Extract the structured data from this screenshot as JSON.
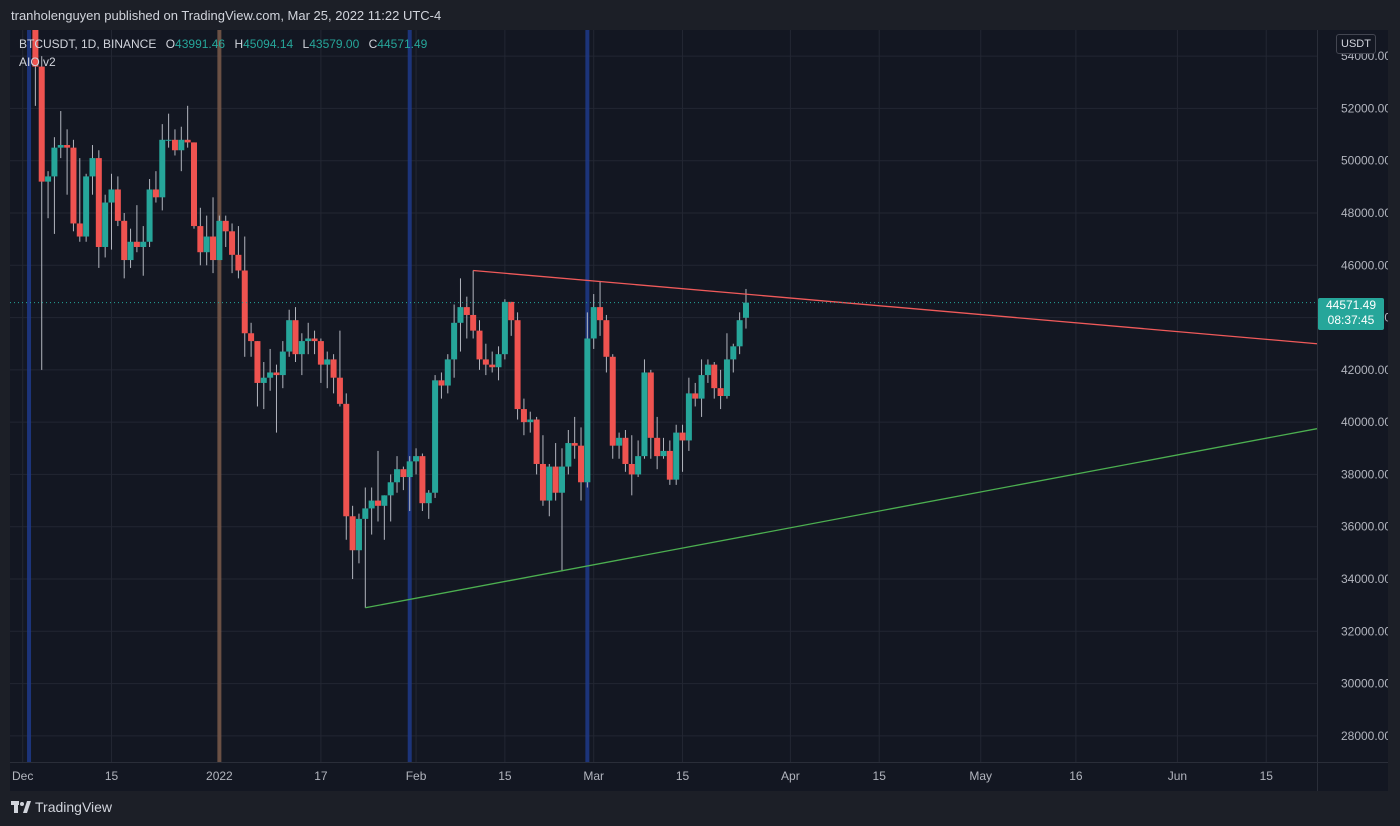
{
  "header": {
    "published_text": "tranholenguyen published on TradingView.com, Mar 25, 2022 11:22 UTC-4"
  },
  "legend": {
    "symbol": "BTCUSDT, 1D, BINANCE",
    "o_label": "O",
    "o": "43991.46",
    "h_label": "H",
    "h": "45094.14",
    "l_label": "L",
    "l": "43579.00",
    "c_label": "C",
    "c": "44571.49",
    "indicator": "AIO v2"
  },
  "currency_badge": "USDT",
  "last_price": {
    "value": "44571.49",
    "countdown": "08:37:45"
  },
  "footer": {
    "brand": "TradingView"
  },
  "colors": {
    "up": "#26a69a",
    "down": "#ef5350",
    "resistance": "#f05a5a",
    "support": "#4caf50",
    "background": "#131722",
    "blue_band": "#1e3a8a",
    "brown_band": "#7a5a4a"
  },
  "chart_data": {
    "type": "candlestick",
    "y_ticks": [
      "54000.00",
      "52000.00",
      "50000.00",
      "48000.00",
      "46000.00",
      "44000.00",
      "42000.00",
      "40000.00",
      "38000.00",
      "36000.00",
      "34000.00",
      "32000.00",
      "30000.00",
      "28000.00"
    ],
    "ylim": [
      27000,
      55000
    ],
    "x_ticks": [
      {
        "date": "2021-12-01",
        "label": "Dec"
      },
      {
        "date": "2021-12-15",
        "label": "15"
      },
      {
        "date": "2022-01-01",
        "label": "2022"
      },
      {
        "date": "2022-01-17",
        "label": "17"
      },
      {
        "date": "2022-02-01",
        "label": "Feb"
      },
      {
        "date": "2022-02-15",
        "label": "15"
      },
      {
        "date": "2022-03-01",
        "label": "Mar"
      },
      {
        "date": "2022-03-15",
        "label": "15"
      },
      {
        "date": "2022-04-01",
        "label": "Apr"
      },
      {
        "date": "2022-04-15",
        "label": "15"
      },
      {
        "date": "2022-05-01",
        "label": "May"
      },
      {
        "date": "2022-05-16",
        "label": "16"
      },
      {
        "date": "2022-06-01",
        "label": "Jun"
      },
      {
        "date": "2022-06-15",
        "label": "15"
      }
    ],
    "xlim": [
      "2021-11-29",
      "2022-06-23"
    ],
    "vertical_bands": [
      {
        "date": "2021-12-02",
        "color": "blue"
      },
      {
        "date": "2022-01-01",
        "color": "brown"
      },
      {
        "date": "2022-01-31",
        "color": "blue"
      },
      {
        "date": "2022-02-28",
        "color": "blue"
      }
    ],
    "trendlines": [
      {
        "name": "resistance",
        "from": {
          "date": "2022-02-10",
          "y": 45800
        },
        "to": {
          "date": "2022-06-23",
          "y": 43000
        }
      },
      {
        "name": "support",
        "from": {
          "date": "2022-01-24",
          "y": 32900
        },
        "to": {
          "date": "2022-06-23",
          "y": 39750
        }
      }
    ],
    "last_price_line": 44571.49,
    "candles": [
      {
        "d": "2021-12-03",
        "o": 56500,
        "h": 57600,
        "l": 52100,
        "c": 53600
      },
      {
        "d": "2021-12-04",
        "o": 53600,
        "h": 54000,
        "l": 42000,
        "c": 49200
      },
      {
        "d": "2021-12-05",
        "o": 49200,
        "h": 49600,
        "l": 47800,
        "c": 49400
      },
      {
        "d": "2021-12-06",
        "o": 49400,
        "h": 50900,
        "l": 47200,
        "c": 50500
      },
      {
        "d": "2021-12-07",
        "o": 50500,
        "h": 51900,
        "l": 50100,
        "c": 50600
      },
      {
        "d": "2021-12-08",
        "o": 50600,
        "h": 51200,
        "l": 48700,
        "c": 50500
      },
      {
        "d": "2021-12-09",
        "o": 50500,
        "h": 50800,
        "l": 47300,
        "c": 47600
      },
      {
        "d": "2021-12-10",
        "o": 47600,
        "h": 50100,
        "l": 46900,
        "c": 47100
      },
      {
        "d": "2021-12-11",
        "o": 47100,
        "h": 49500,
        "l": 46900,
        "c": 49400
      },
      {
        "d": "2021-12-12",
        "o": 49400,
        "h": 50600,
        "l": 48700,
        "c": 50100
      },
      {
        "d": "2021-12-13",
        "o": 50100,
        "h": 50400,
        "l": 45900,
        "c": 46700
      },
      {
        "d": "2021-12-14",
        "o": 46700,
        "h": 48700,
        "l": 46300,
        "c": 48400
      },
      {
        "d": "2021-12-15",
        "o": 48400,
        "h": 49500,
        "l": 46600,
        "c": 48900
      },
      {
        "d": "2021-12-16",
        "o": 48900,
        "h": 49400,
        "l": 47500,
        "c": 47700
      },
      {
        "d": "2021-12-17",
        "o": 47700,
        "h": 48000,
        "l": 45500,
        "c": 46200
      },
      {
        "d": "2021-12-18",
        "o": 46200,
        "h": 47400,
        "l": 45900,
        "c": 46900
      },
      {
        "d": "2021-12-19",
        "o": 46900,
        "h": 48300,
        "l": 46500,
        "c": 46700
      },
      {
        "d": "2021-12-20",
        "o": 46700,
        "h": 47500,
        "l": 45600,
        "c": 46900
      },
      {
        "d": "2021-12-21",
        "o": 46900,
        "h": 49300,
        "l": 46700,
        "c": 48900
      },
      {
        "d": "2021-12-22",
        "o": 48900,
        "h": 49600,
        "l": 48400,
        "c": 48600
      },
      {
        "d": "2021-12-23",
        "o": 48600,
        "h": 51400,
        "l": 48100,
        "c": 50800
      },
      {
        "d": "2021-12-24",
        "o": 50800,
        "h": 51800,
        "l": 50500,
        "c": 50800
      },
      {
        "d": "2021-12-25",
        "o": 50800,
        "h": 51200,
        "l": 50200,
        "c": 50400
      },
      {
        "d": "2021-12-26",
        "o": 50400,
        "h": 51300,
        "l": 49600,
        "c": 50800
      },
      {
        "d": "2021-12-27",
        "o": 50800,
        "h": 52100,
        "l": 50500,
        "c": 50700
      },
      {
        "d": "2021-12-28",
        "o": 50700,
        "h": 50700,
        "l": 47400,
        "c": 47500
      },
      {
        "d": "2021-12-29",
        "o": 47500,
        "h": 48200,
        "l": 46000,
        "c": 46500
      },
      {
        "d": "2021-12-30",
        "o": 46500,
        "h": 47900,
        "l": 46000,
        "c": 47100
      },
      {
        "d": "2021-12-31",
        "o": 47100,
        "h": 48600,
        "l": 45700,
        "c": 46200
      },
      {
        "d": "2022-01-01",
        "o": 46200,
        "h": 47900,
        "l": 46200,
        "c": 47700
      },
      {
        "d": "2022-01-02",
        "o": 47700,
        "h": 47900,
        "l": 46700,
        "c": 47300
      },
      {
        "d": "2022-01-03",
        "o": 47300,
        "h": 47600,
        "l": 45700,
        "c": 46400
      },
      {
        "d": "2022-01-04",
        "o": 46400,
        "h": 47500,
        "l": 45500,
        "c": 45800
      },
      {
        "d": "2022-01-05",
        "o": 45800,
        "h": 47100,
        "l": 42500,
        "c": 43400
      },
      {
        "d": "2022-01-06",
        "o": 43400,
        "h": 43800,
        "l": 42500,
        "c": 43100
      },
      {
        "d": "2022-01-07",
        "o": 43100,
        "h": 43100,
        "l": 40600,
        "c": 41500
      },
      {
        "d": "2022-01-08",
        "o": 41500,
        "h": 42300,
        "l": 40500,
        "c": 41700
      },
      {
        "d": "2022-01-09",
        "o": 41700,
        "h": 42800,
        "l": 41200,
        "c": 41900
      },
      {
        "d": "2022-01-10",
        "o": 41900,
        "h": 42200,
        "l": 39600,
        "c": 41800
      },
      {
        "d": "2022-01-11",
        "o": 41800,
        "h": 43100,
        "l": 41300,
        "c": 42700
      },
      {
        "d": "2022-01-12",
        "o": 42700,
        "h": 44300,
        "l": 42500,
        "c": 43900
      },
      {
        "d": "2022-01-13",
        "o": 43900,
        "h": 44400,
        "l": 42300,
        "c": 42600
      },
      {
        "d": "2022-01-14",
        "o": 42600,
        "h": 43400,
        "l": 41800,
        "c": 43100
      },
      {
        "d": "2022-01-15",
        "o": 43100,
        "h": 43800,
        "l": 42600,
        "c": 43200
      },
      {
        "d": "2022-01-16",
        "o": 43200,
        "h": 43500,
        "l": 42600,
        "c": 43100
      },
      {
        "d": "2022-01-17",
        "o": 43100,
        "h": 43200,
        "l": 41500,
        "c": 42200
      },
      {
        "d": "2022-01-18",
        "o": 42200,
        "h": 42700,
        "l": 41300,
        "c": 42400
      },
      {
        "d": "2022-01-19",
        "o": 42400,
        "h": 42600,
        "l": 41100,
        "c": 41700
      },
      {
        "d": "2022-01-20",
        "o": 41700,
        "h": 43500,
        "l": 40600,
        "c": 40700
      },
      {
        "d": "2022-01-21",
        "o": 40700,
        "h": 41100,
        "l": 35500,
        "c": 36400
      },
      {
        "d": "2022-01-22",
        "o": 36400,
        "h": 36800,
        "l": 34000,
        "c": 35100
      },
      {
        "d": "2022-01-23",
        "o": 35100,
        "h": 36500,
        "l": 34600,
        "c": 36300
      },
      {
        "d": "2022-01-24",
        "o": 36300,
        "h": 37500,
        "l": 32900,
        "c": 36700
      },
      {
        "d": "2022-01-25",
        "o": 36700,
        "h": 37500,
        "l": 35700,
        "c": 37000
      },
      {
        "d": "2022-01-26",
        "o": 37000,
        "h": 38900,
        "l": 36200,
        "c": 36800
      },
      {
        "d": "2022-01-27",
        "o": 36800,
        "h": 37200,
        "l": 35500,
        "c": 37200
      },
      {
        "d": "2022-01-28",
        "o": 37200,
        "h": 38000,
        "l": 36200,
        "c": 37700
      },
      {
        "d": "2022-01-29",
        "o": 37700,
        "h": 38700,
        "l": 37300,
        "c": 38200
      },
      {
        "d": "2022-01-30",
        "o": 38200,
        "h": 38300,
        "l": 37400,
        "c": 37900
      },
      {
        "d": "2022-01-31",
        "o": 37900,
        "h": 38700,
        "l": 36600,
        "c": 38500
      },
      {
        "d": "2022-02-01",
        "o": 38500,
        "h": 39000,
        "l": 38000,
        "c": 38700
      },
      {
        "d": "2022-02-02",
        "o": 38700,
        "h": 38800,
        "l": 36600,
        "c": 36900
      },
      {
        "d": "2022-02-03",
        "o": 36900,
        "h": 37400,
        "l": 36300,
        "c": 37300
      },
      {
        "d": "2022-02-04",
        "o": 37300,
        "h": 41800,
        "l": 37100,
        "c": 41600
      },
      {
        "d": "2022-02-05",
        "o": 41600,
        "h": 41900,
        "l": 40900,
        "c": 41400
      },
      {
        "d": "2022-02-06",
        "o": 41400,
        "h": 42600,
        "l": 41100,
        "c": 42400
      },
      {
        "d": "2022-02-07",
        "o": 42400,
        "h": 44500,
        "l": 41700,
        "c": 43800
      },
      {
        "d": "2022-02-08",
        "o": 43800,
        "h": 45500,
        "l": 42700,
        "c": 44400
      },
      {
        "d": "2022-02-09",
        "o": 44400,
        "h": 44800,
        "l": 43200,
        "c": 44100
      },
      {
        "d": "2022-02-10",
        "o": 44100,
        "h": 45800,
        "l": 43200,
        "c": 43500
      },
      {
        "d": "2022-02-11",
        "o": 43500,
        "h": 43900,
        "l": 42000,
        "c": 42400
      },
      {
        "d": "2022-02-12",
        "o": 42400,
        "h": 43000,
        "l": 41800,
        "c": 42200
      },
      {
        "d": "2022-02-13",
        "o": 42200,
        "h": 42700,
        "l": 41900,
        "c": 42100
      },
      {
        "d": "2022-02-14",
        "o": 42100,
        "h": 42900,
        "l": 41600,
        "c": 42600
      },
      {
        "d": "2022-02-15",
        "o": 42600,
        "h": 44700,
        "l": 42400,
        "c": 44600
      },
      {
        "d": "2022-02-16",
        "o": 44600,
        "h": 44600,
        "l": 43300,
        "c": 43900
      },
      {
        "d": "2022-02-17",
        "o": 43900,
        "h": 44200,
        "l": 40100,
        "c": 40500
      },
      {
        "d": "2022-02-18",
        "o": 40500,
        "h": 40900,
        "l": 39500,
        "c": 40000
      },
      {
        "d": "2022-02-19",
        "o": 40000,
        "h": 40400,
        "l": 39600,
        "c": 40100
      },
      {
        "d": "2022-02-20",
        "o": 40100,
        "h": 40200,
        "l": 38000,
        "c": 38400
      },
      {
        "d": "2022-02-21",
        "o": 38400,
        "h": 39500,
        "l": 36800,
        "c": 37000
      },
      {
        "d": "2022-02-22",
        "o": 37000,
        "h": 38400,
        "l": 36400,
        "c": 38300
      },
      {
        "d": "2022-02-23",
        "o": 38300,
        "h": 39200,
        "l": 37000,
        "c": 37300
      },
      {
        "d": "2022-02-24",
        "o": 37300,
        "h": 39000,
        "l": 34300,
        "c": 38300
      },
      {
        "d": "2022-02-25",
        "o": 38300,
        "h": 39700,
        "l": 38000,
        "c": 39200
      },
      {
        "d": "2022-02-26",
        "o": 39200,
        "h": 40200,
        "l": 38600,
        "c": 39100
      },
      {
        "d": "2022-02-27",
        "o": 39100,
        "h": 39800,
        "l": 37000,
        "c": 37700
      },
      {
        "d": "2022-02-28",
        "o": 37700,
        "h": 44200,
        "l": 37500,
        "c": 43200
      },
      {
        "d": "2022-03-01",
        "o": 43200,
        "h": 44900,
        "l": 42800,
        "c": 44400
      },
      {
        "d": "2022-03-02",
        "o": 44400,
        "h": 45400,
        "l": 43300,
        "c": 43900
      },
      {
        "d": "2022-03-03",
        "o": 43900,
        "h": 44100,
        "l": 41900,
        "c": 42500
      },
      {
        "d": "2022-03-04",
        "o": 42500,
        "h": 42600,
        "l": 38600,
        "c": 39100
      },
      {
        "d": "2022-03-05",
        "o": 39100,
        "h": 39600,
        "l": 38600,
        "c": 39400
      },
      {
        "d": "2022-03-06",
        "o": 39400,
        "h": 39700,
        "l": 38100,
        "c": 38400
      },
      {
        "d": "2022-03-07",
        "o": 38400,
        "h": 39500,
        "l": 37200,
        "c": 38000
      },
      {
        "d": "2022-03-08",
        "o": 38000,
        "h": 39300,
        "l": 37900,
        "c": 38700
      },
      {
        "d": "2022-03-09",
        "o": 38700,
        "h": 42400,
        "l": 38600,
        "c": 41900
      },
      {
        "d": "2022-03-10",
        "o": 41900,
        "h": 42000,
        "l": 38600,
        "c": 39400
      },
      {
        "d": "2022-03-11",
        "o": 39400,
        "h": 40200,
        "l": 38200,
        "c": 38700
      },
      {
        "d": "2022-03-12",
        "o": 38700,
        "h": 39400,
        "l": 38600,
        "c": 38900
      },
      {
        "d": "2022-03-13",
        "o": 38900,
        "h": 39300,
        "l": 37600,
        "c": 37800
      },
      {
        "d": "2022-03-14",
        "o": 37800,
        "h": 39900,
        "l": 37600,
        "c": 39600
      },
      {
        "d": "2022-03-15",
        "o": 39600,
        "h": 39900,
        "l": 38100,
        "c": 39300
      },
      {
        "d": "2022-03-16",
        "o": 39300,
        "h": 41700,
        "l": 38900,
        "c": 41100
      },
      {
        "d": "2022-03-17",
        "o": 41100,
        "h": 41500,
        "l": 40600,
        "c": 40900
      },
      {
        "d": "2022-03-18",
        "o": 40900,
        "h": 42400,
        "l": 40200,
        "c": 41800
      },
      {
        "d": "2022-03-19",
        "o": 41800,
        "h": 42400,
        "l": 41500,
        "c": 42200
      },
      {
        "d": "2022-03-20",
        "o": 42200,
        "h": 42300,
        "l": 40900,
        "c": 41300
      },
      {
        "d": "2022-03-21",
        "o": 41300,
        "h": 42000,
        "l": 40500,
        "c": 41000
      },
      {
        "d": "2022-03-22",
        "o": 41000,
        "h": 43400,
        "l": 40900,
        "c": 42400
      },
      {
        "d": "2022-03-23",
        "o": 42400,
        "h": 43000,
        "l": 41900,
        "c": 42900
      },
      {
        "d": "2022-03-24",
        "o": 42900,
        "h": 44200,
        "l": 42600,
        "c": 43900
      },
      {
        "d": "2022-03-25",
        "o": 43991.46,
        "h": 45094.14,
        "l": 43579.0,
        "c": 44571.49
      }
    ]
  }
}
